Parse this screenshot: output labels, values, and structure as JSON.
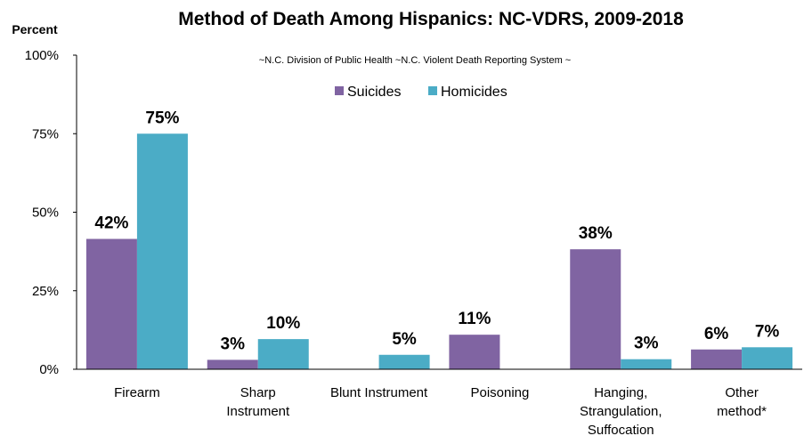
{
  "chart_data": {
    "type": "bar",
    "title": "Method of Death Among Hispanics: NC-VDRS, 2009-2018",
    "subtitle": "~N.C. Division of Public Health ~N.C. Violent Death Reporting System ~",
    "ylabel": "Percent",
    "xlabel": "",
    "ylim": [
      0,
      100
    ],
    "yticks": [
      "0%",
      "25%",
      "50%",
      "75%",
      "100%"
    ],
    "legend_position": "top-center",
    "categories": [
      [
        "Firearm"
      ],
      [
        "Sharp",
        "Instrument"
      ],
      [
        "Blunt Instrument"
      ],
      [
        "Poisoning"
      ],
      [
        "Hanging,",
        "Strangulation,",
        "Suffocation"
      ],
      [
        "Other",
        "method*"
      ]
    ],
    "series": [
      {
        "name": "Suicides",
        "color": "#8064a2",
        "values": [
          41.5,
          3,
          0,
          11,
          38.2,
          6.3
        ],
        "labels": [
          "42%",
          "3%",
          "",
          "11%",
          "38%",
          "6%"
        ]
      },
      {
        "name": "Homicides",
        "color": "#4bacc6",
        "values": [
          75,
          9.6,
          4.6,
          0,
          3.2,
          7
        ],
        "labels": [
          "75%",
          "10%",
          "5%",
          "",
          "3%",
          "7%"
        ]
      }
    ]
  }
}
